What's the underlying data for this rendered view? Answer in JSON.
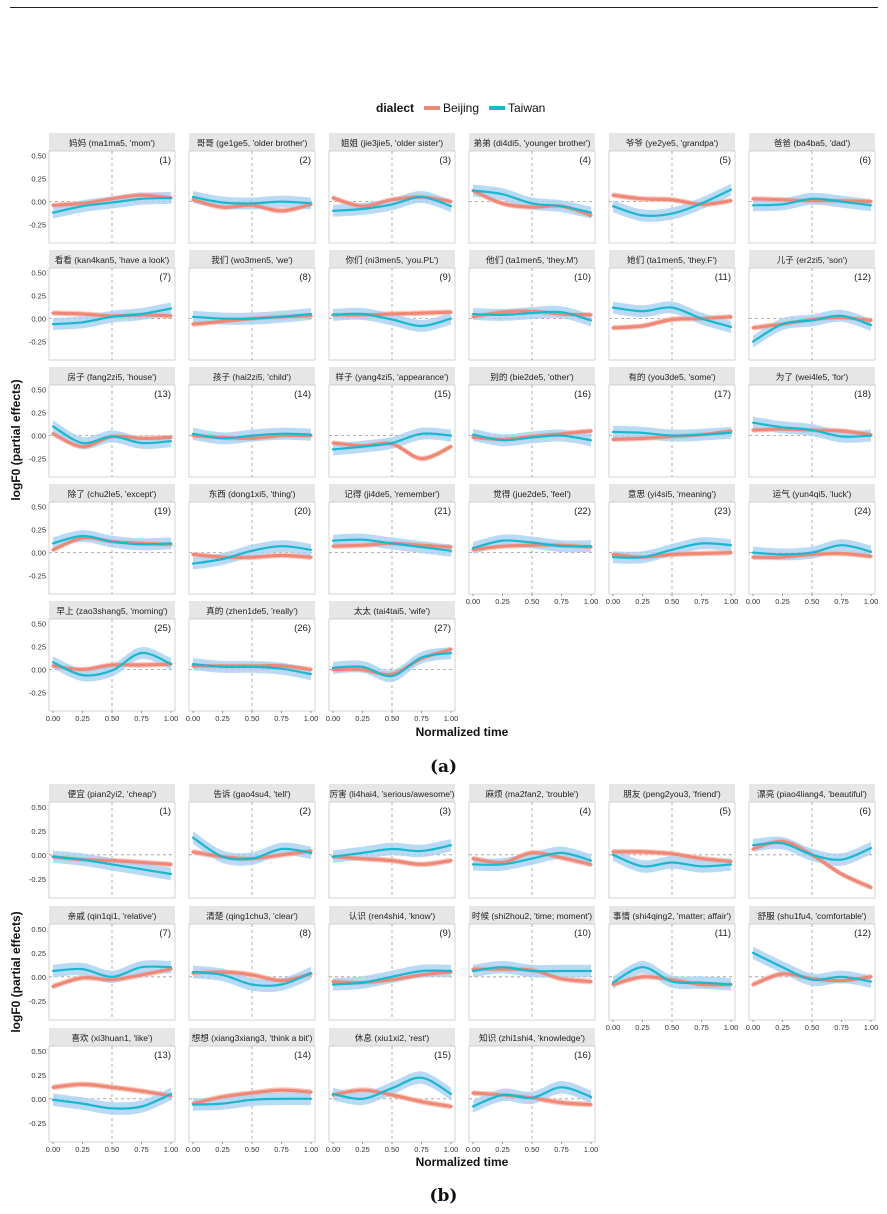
{
  "legend": {
    "title": "dialect",
    "items": [
      {
        "label": "Beijing",
        "color": "#F08878"
      },
      {
        "label": "Taiwan",
        "color": "#19B8CC"
      }
    ]
  },
  "figure_a": {
    "caption": "(a)",
    "ylabel": "logF0 (partial effects)",
    "xlabel": "Normalized time",
    "y_ticks": [
      "0.50",
      "0.25",
      "0.00",
      "-0.25"
    ],
    "x_ticks": [
      "0.00",
      "0.25",
      "0.50",
      "0.75",
      "1.00"
    ],
    "panels": [
      {
        "title": "妈妈 (ma1ma5, 'mom')",
        "num": "(1)"
      },
      {
        "title": "哥哥 (ge1ge5, 'older brother')",
        "num": "(2)"
      },
      {
        "title": "姐姐 (jie3jie5, 'older sister')",
        "num": "(3)"
      },
      {
        "title": "弟弟 (di4di5, 'younger brother')",
        "num": "(4)"
      },
      {
        "title": "爷爷 (ye2ye5, 'grandpa')",
        "num": "(5)"
      },
      {
        "title": "爸爸 (ba4ba5, 'dad')",
        "num": "(6)"
      },
      {
        "title": "看看 (kan4kan5, 'have a look')",
        "num": "(7)"
      },
      {
        "title": "我们 (wo3men5, 'we')",
        "num": "(8)"
      },
      {
        "title": "你们 (ni3men5, 'you.PL')",
        "num": "(9)"
      },
      {
        "title": "他们 (ta1men5, 'they.M')",
        "num": "(10)"
      },
      {
        "title": "她们 (ta1men5, 'they.F')",
        "num": "(11)"
      },
      {
        "title": "儿子 (er2zi5, 'son')",
        "num": "(12)"
      },
      {
        "title": "房子 (fang2zi5, 'house')",
        "num": "(13)"
      },
      {
        "title": "孩子 (hai2zi5, 'child')",
        "num": "(14)"
      },
      {
        "title": "样子 (yang4zi5, 'appearance')",
        "num": "(15)"
      },
      {
        "title": "别的 (bie2de5, 'other')",
        "num": "(16)"
      },
      {
        "title": "有的 (you3de5, 'some')",
        "num": "(17)"
      },
      {
        "title": "为了 (wei4le5, 'for')",
        "num": "(18)"
      },
      {
        "title": "除了 (chu2le5, 'except')",
        "num": "(19)"
      },
      {
        "title": "东西 (dong1xi5, 'thing')",
        "num": "(20)"
      },
      {
        "title": "记得 (ji4de5, 'remember')",
        "num": "(21)"
      },
      {
        "title": "觉得 (jue2de5, 'feel')",
        "num": "(22)"
      },
      {
        "title": "意思 (yi4si5, 'meaning')",
        "num": "(23)"
      },
      {
        "title": "运气 (yun4qi5, 'luck')",
        "num": "(24)"
      },
      {
        "title": "早上 (zao3shang5, 'morning')",
        "num": "(25)"
      },
      {
        "title": "真的 (zhen1de5, 'really')",
        "num": "(26)"
      },
      {
        "title": "太太 (tai4tai5, 'wife')",
        "num": "(27)"
      }
    ]
  },
  "figure_b": {
    "caption": "(b)",
    "ylabel": "logF0 (partial effects)",
    "xlabel": "Normalized time",
    "y_ticks": [
      "0.50",
      "0.25",
      "0.00",
      "-0.25"
    ],
    "x_ticks": [
      "0.00",
      "0.25",
      "0.50",
      "0.75",
      "1.00"
    ],
    "panels": [
      {
        "title": "便宜 (pian2yi2, 'cheap')",
        "num": "(1)"
      },
      {
        "title": "告诉 (gao4su4, 'tell')",
        "num": "(2)"
      },
      {
        "title": "厉害 (li4hai4, 'serious/awesome')",
        "num": "(3)"
      },
      {
        "title": "麻烦 (ma2fan2, 'trouble')",
        "num": "(4)"
      },
      {
        "title": "朋友 (peng2you3, 'friend')",
        "num": "(5)"
      },
      {
        "title": "漂亮 (piao4liang4, 'beautiful')",
        "num": "(6)"
      },
      {
        "title": "亲戚 (qin1qi1, 'relative')",
        "num": "(7)"
      },
      {
        "title": "清楚 (qing1chu3, 'clear')",
        "num": "(8)"
      },
      {
        "title": "认识 (ren4shi4, 'know')",
        "num": "(9)"
      },
      {
        "title": "时候 (shi2hou2, 'time; moment')",
        "num": "(10)"
      },
      {
        "title": "事情 (shi4qing2, 'matter; affair')",
        "num": "(11)"
      },
      {
        "title": "舒服 (shu1fu4, 'comfortable')",
        "num": "(12)"
      },
      {
        "title": "喜欢 (xi3huan1, 'like')",
        "num": "(13)"
      },
      {
        "title": "想想 (xiang3xiang3, 'think a bit')",
        "num": "(14)"
      },
      {
        "title": "休息 (xiu1xi2, 'rest')",
        "num": "(15)"
      },
      {
        "title": "知识 (zhi1shi4, 'knowledge')",
        "num": "(16)"
      }
    ]
  },
  "chart_data": [
    {
      "type": "line",
      "x": [
        0,
        0.25,
        0.5,
        0.75,
        1
      ],
      "ylim": [
        -0.45,
        0.55
      ],
      "xlim": [
        0,
        1
      ],
      "reference_lines": {
        "vertical_x": 0.5,
        "horizontal_y": 0
      },
      "series_names": [
        "Beijing",
        "Taiwan"
      ],
      "panels": [
        {
          "Beijing": [
            -0.04,
            -0.02,
            0.03,
            0.07,
            0.04
          ],
          "Taiwan": [
            -0.12,
            -0.05,
            -0.01,
            0.03,
            0.04
          ]
        },
        {
          "Beijing": [
            0.02,
            -0.06,
            -0.04,
            -0.1,
            -0.03
          ],
          "Taiwan": [
            0.05,
            -0.01,
            -0.02,
            0.0,
            -0.02
          ]
        },
        {
          "Beijing": [
            0.04,
            -0.05,
            0.02,
            0.05,
            0.0
          ],
          "Taiwan": [
            -0.1,
            -0.08,
            -0.03,
            0.05,
            -0.05
          ]
        },
        {
          "Beijing": [
            0.12,
            -0.02,
            -0.06,
            -0.05,
            -0.15
          ],
          "Taiwan": [
            0.12,
            0.08,
            -0.02,
            -0.05,
            -0.12
          ]
        },
        {
          "Beijing": [
            0.07,
            0.03,
            0.02,
            -0.03,
            0.01
          ],
          "Taiwan": [
            -0.05,
            -0.15,
            -0.13,
            -0.02,
            0.13
          ]
        },
        {
          "Beijing": [
            0.03,
            0.02,
            0.01,
            0.01,
            0.0
          ],
          "Taiwan": [
            -0.04,
            -0.03,
            0.03,
            0.0,
            -0.04
          ]
        },
        {
          "Beijing": [
            0.06,
            0.05,
            0.03,
            0.04,
            0.03
          ],
          "Taiwan": [
            -0.06,
            -0.04,
            0.02,
            0.05,
            0.11
          ]
        },
        {
          "Beijing": [
            -0.06,
            -0.03,
            0.0,
            0.02,
            0.03
          ],
          "Taiwan": [
            0.02,
            0.0,
            0.0,
            0.02,
            0.05
          ]
        },
        {
          "Beijing": [
            0.04,
            0.04,
            0.05,
            0.06,
            0.07
          ],
          "Taiwan": [
            0.04,
            0.05,
            -0.01,
            -0.08,
            0.0
          ]
        },
        {
          "Beijing": [
            0.02,
            0.07,
            0.08,
            0.05,
            0.04
          ],
          "Taiwan": [
            0.05,
            0.04,
            0.06,
            0.07,
            -0.02
          ]
        },
        {
          "Beijing": [
            -0.1,
            -0.08,
            -0.01,
            0.0,
            0.02
          ],
          "Taiwan": [
            0.12,
            0.08,
            0.12,
            0.0,
            -0.09
          ]
        },
        {
          "Beijing": [
            -0.1,
            -0.06,
            -0.01,
            0.01,
            -0.02
          ],
          "Taiwan": [
            -0.25,
            -0.06,
            -0.02,
            0.03,
            -0.07
          ]
        },
        {
          "Beijing": [
            0.02,
            -0.12,
            -0.01,
            -0.03,
            -0.02
          ],
          "Taiwan": [
            0.1,
            -0.08,
            -0.01,
            -0.08,
            -0.06
          ]
        },
        {
          "Beijing": [
            0.0,
            -0.02,
            -0.03,
            0.0,
            0.0
          ],
          "Taiwan": [
            0.02,
            -0.03,
            0.0,
            0.02,
            0.01
          ]
        },
        {
          "Beijing": [
            -0.08,
            -0.11,
            -0.09,
            -0.25,
            -0.12
          ],
          "Taiwan": [
            -0.15,
            -0.12,
            -0.08,
            0.02,
            0.0
          ]
        },
        {
          "Beijing": [
            -0.02,
            -0.04,
            -0.01,
            0.02,
            0.05
          ],
          "Taiwan": [
            0.01,
            -0.05,
            -0.02,
            0.0,
            -0.05
          ]
        },
        {
          "Beijing": [
            -0.04,
            -0.03,
            -0.01,
            0.01,
            0.05
          ],
          "Taiwan": [
            0.04,
            0.03,
            0.0,
            0.01,
            0.03
          ]
        },
        {
          "Beijing": [
            0.06,
            0.07,
            0.06,
            0.05,
            0.01
          ],
          "Taiwan": [
            0.14,
            0.09,
            0.06,
            -0.01,
            0.0
          ]
        },
        {
          "Beijing": [
            0.03,
            0.16,
            0.12,
            0.1,
            0.09
          ],
          "Taiwan": [
            0.1,
            0.18,
            0.12,
            0.09,
            0.1
          ]
        },
        {
          "Beijing": [
            -0.02,
            -0.05,
            -0.05,
            -0.03,
            -0.05
          ],
          "Taiwan": [
            -0.12,
            -0.07,
            0.02,
            0.07,
            0.03
          ]
        },
        {
          "Beijing": [
            0.07,
            0.08,
            0.1,
            0.08,
            0.06
          ],
          "Taiwan": [
            0.13,
            0.14,
            0.1,
            0.06,
            0.02
          ]
        },
        {
          "Beijing": [
            0.03,
            0.07,
            0.08,
            0.08,
            0.06
          ],
          "Taiwan": [
            0.05,
            0.13,
            0.11,
            0.07,
            0.07
          ]
        },
        {
          "Beijing": [
            -0.02,
            -0.05,
            -0.02,
            -0.01,
            0.0
          ],
          "Taiwan": [
            -0.05,
            -0.05,
            0.03,
            0.1,
            0.08
          ]
        },
        {
          "Beijing": [
            -0.05,
            -0.05,
            -0.02,
            -0.01,
            -0.04
          ],
          "Taiwan": [
            0.0,
            -0.02,
            0.0,
            0.08,
            0.01
          ]
        },
        {
          "Beijing": [
            0.04,
            0.0,
            0.05,
            0.05,
            0.06
          ],
          "Taiwan": [
            0.08,
            -0.06,
            -0.01,
            0.18,
            0.06
          ]
        },
        {
          "Beijing": [
            0.04,
            0.04,
            0.04,
            0.04,
            0.0
          ],
          "Taiwan": [
            0.06,
            0.03,
            0.03,
            0.01,
            -0.05
          ]
        },
        {
          "Beijing": [
            0.0,
            0.0,
            -0.05,
            0.12,
            0.22
          ],
          "Taiwan": [
            0.02,
            0.03,
            -0.07,
            0.13,
            0.18
          ]
        }
      ]
    },
    {
      "type": "line",
      "x": [
        0,
        0.25,
        0.5,
        0.75,
        1
      ],
      "ylim": [
        -0.45,
        0.55
      ],
      "xlim": [
        0,
        1
      ],
      "reference_lines": {
        "vertical_x": 0.5,
        "horizontal_y": 0
      },
      "series_names": [
        "Beijing",
        "Taiwan"
      ],
      "panels": [
        {
          "Beijing": [
            -0.02,
            -0.05,
            -0.06,
            -0.08,
            -0.1
          ],
          "Taiwan": [
            -0.02,
            -0.05,
            -0.1,
            -0.15,
            -0.2
          ]
        },
        {
          "Beijing": [
            0.03,
            -0.02,
            -0.04,
            0.0,
            0.04
          ],
          "Taiwan": [
            0.18,
            -0.02,
            -0.04,
            0.06,
            0.02
          ]
        },
        {
          "Beijing": [
            -0.02,
            -0.04,
            -0.06,
            -0.1,
            -0.06
          ],
          "Taiwan": [
            -0.02,
            0.02,
            0.06,
            0.04,
            0.1
          ]
        },
        {
          "Beijing": [
            -0.04,
            -0.08,
            0.02,
            -0.03,
            -0.1
          ],
          "Taiwan": [
            -0.1,
            -0.1,
            -0.04,
            0.02,
            -0.06
          ]
        },
        {
          "Beijing": [
            0.03,
            0.03,
            0.01,
            -0.04,
            -0.07
          ],
          "Taiwan": [
            0.0,
            -0.12,
            -0.08,
            -0.12,
            -0.1
          ]
        },
        {
          "Beijing": [
            0.06,
            0.14,
            0.0,
            -0.2,
            -0.34
          ],
          "Taiwan": [
            0.1,
            0.12,
            0.0,
            -0.05,
            0.07
          ]
        },
        {
          "Beijing": [
            -0.1,
            -0.01,
            -0.03,
            0.02,
            0.08
          ],
          "Taiwan": [
            0.06,
            0.08,
            0.0,
            0.1,
            0.1
          ]
        },
        {
          "Beijing": [
            0.04,
            0.05,
            0.02,
            -0.04,
            0.03
          ],
          "Taiwan": [
            0.05,
            0.02,
            -0.08,
            -0.08,
            0.04
          ]
        },
        {
          "Beijing": [
            -0.05,
            -0.06,
            -0.03,
            0.02,
            0.05
          ],
          "Taiwan": [
            -0.08,
            -0.06,
            0.0,
            0.06,
            0.06
          ]
        },
        {
          "Beijing": [
            0.08,
            0.08,
            0.07,
            -0.02,
            -0.05
          ],
          "Taiwan": [
            0.06,
            0.1,
            0.06,
            0.06,
            0.06
          ]
        },
        {
          "Beijing": [
            -0.08,
            0.0,
            -0.03,
            -0.08,
            -0.08
          ],
          "Taiwan": [
            -0.06,
            0.1,
            -0.05,
            -0.06,
            -0.08
          ]
        },
        {
          "Beijing": [
            -0.08,
            0.03,
            -0.02,
            -0.04,
            0.0
          ],
          "Taiwan": [
            0.25,
            0.1,
            -0.03,
            0.0,
            -0.05
          ]
        },
        {
          "Beijing": [
            0.12,
            0.15,
            0.12,
            0.08,
            0.03
          ],
          "Taiwan": [
            -0.01,
            -0.05,
            -0.1,
            -0.08,
            0.05
          ]
        },
        {
          "Beijing": [
            -0.05,
            0.02,
            0.06,
            0.09,
            0.07
          ],
          "Taiwan": [
            -0.06,
            -0.05,
            -0.01,
            0.0,
            0.0
          ]
        },
        {
          "Beijing": [
            0.04,
            0.09,
            0.04,
            -0.03,
            -0.08
          ],
          "Taiwan": [
            0.05,
            0.0,
            0.11,
            0.22,
            0.05
          ]
        },
        {
          "Beijing": [
            0.06,
            0.04,
            0.01,
            -0.04,
            -0.06
          ],
          "Taiwan": [
            -0.08,
            0.04,
            0.01,
            0.12,
            0.02
          ]
        }
      ]
    }
  ]
}
